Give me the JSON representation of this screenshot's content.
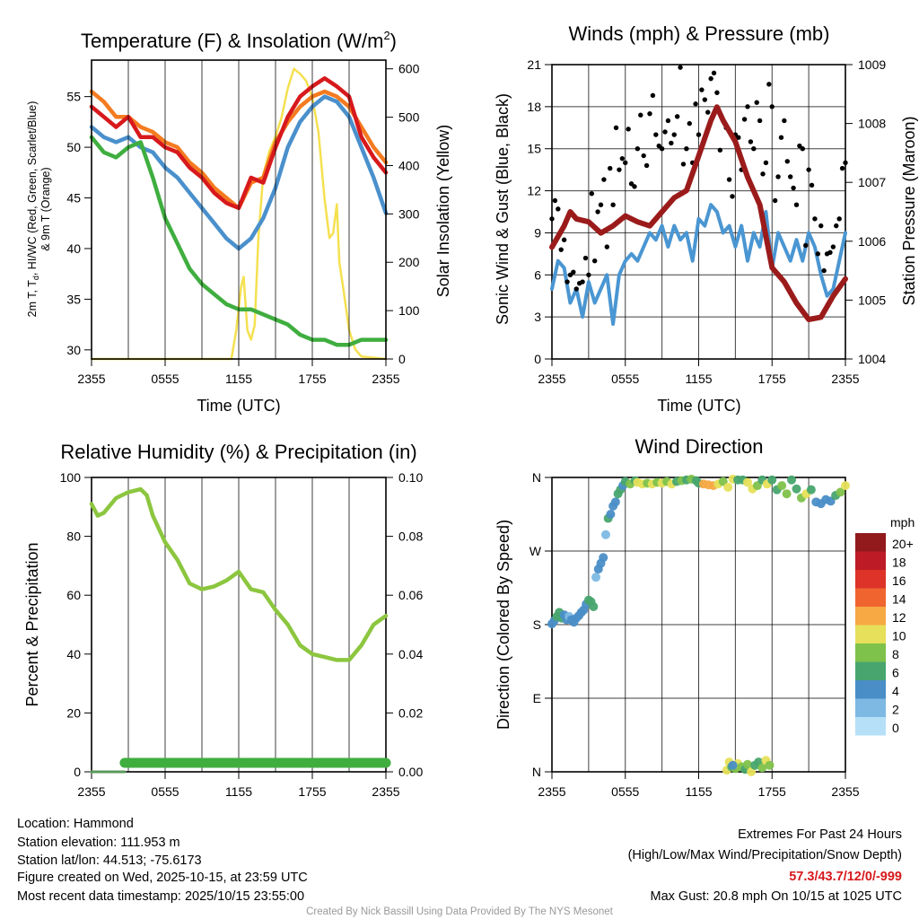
{
  "chart_data": [
    {
      "type": "line",
      "title": "Temperature (F) & Insolation (W/m",
      "title_sup": "2",
      "title_end": ")",
      "xlabel": "Time (UTC)",
      "ylabel_parts": [
        "2m T, T",
        "d",
        ", HI/WC (Red, Green, Scarlet/Blue)"
      ],
      "ylabel_line2": "& 9m T (Orange)",
      "y2label": "Solar Insolation (Yellow)",
      "x_ticks": [
        "2355",
        "0555",
        "1155",
        "1755",
        "2355"
      ],
      "y_ticks": [
        "30",
        "35",
        "40",
        "45",
        "50",
        "55"
      ],
      "y2_ticks": [
        "0",
        "100",
        "200",
        "300",
        "400",
        "500",
        "600"
      ],
      "ylim": [
        29.1,
        58.6
      ],
      "y2lim": [
        0,
        618
      ],
      "hours": [
        0,
        1,
        2,
        3,
        4,
        5,
        6,
        7,
        8,
        9,
        10,
        11,
        12,
        13,
        14,
        15,
        16,
        17,
        18,
        19,
        20,
        21,
        22,
        23,
        24
      ],
      "series": [
        {
          "name": "9m T",
          "color": "#f47b20",
          "values": [
            55.5,
            54.5,
            53,
            53,
            52,
            51.5,
            50.5,
            50,
            48.5,
            47.5,
            46,
            45,
            44,
            46.5,
            47,
            50.5,
            52.5,
            54,
            55,
            55.5,
            55,
            54,
            52,
            50,
            48.5
          ]
        },
        {
          "name": "2m T",
          "color": "#d7191c",
          "values": [
            54,
            53,
            52,
            53,
            51,
            51,
            50,
            49.5,
            48,
            47,
            45.5,
            44.5,
            44,
            47,
            46.5,
            50,
            53,
            55,
            56,
            56.8,
            56,
            55,
            51,
            49,
            47.5
          ]
        },
        {
          "name": "HI/WC",
          "color": "#4a90cc",
          "values": [
            52,
            51,
            50.5,
            51,
            50,
            49.5,
            48,
            47,
            45.5,
            44,
            42.5,
            41,
            40,
            41,
            43,
            46,
            50,
            52.5,
            54,
            55,
            54.5,
            53,
            50,
            47,
            43.5
          ]
        },
        {
          "name": "Td",
          "color": "#3fae3f",
          "values": [
            51,
            49.5,
            49,
            50,
            50.5,
            47,
            43,
            40.5,
            38,
            36.5,
            35.5,
            34.5,
            34,
            34,
            33.5,
            33,
            32.5,
            31.5,
            31,
            31,
            30.5,
            30.5,
            31,
            31,
            31
          ]
        }
      ],
      "insolation": {
        "name": "Solar Insolation",
        "color": "#f5e050",
        "hours": [
          0,
          11.4,
          11.8,
          12.2,
          12.4,
          12.7,
          13.0,
          13.3,
          13.6,
          14,
          14.5,
          15,
          15.5,
          16,
          16.5,
          17,
          17.5,
          18,
          18.5,
          19,
          19.4,
          19.7,
          20,
          20.2,
          20.5,
          21,
          21.5,
          22,
          24
        ],
        "values": [
          0,
          0,
          60,
          150,
          170,
          60,
          40,
          70,
          250,
          380,
          430,
          460,
          500,
          560,
          600,
          590,
          575,
          540,
          470,
          330,
          250,
          260,
          320,
          200,
          150,
          60,
          20,
          5,
          0
        ]
      }
    },
    {
      "type": "line",
      "title": "Winds (mph) & Pressure (mb)",
      "xlabel": "Time (UTC)",
      "ylabel": "Sonic Wind & Gust (Blue, Black)",
      "y2label": "Station Pressure (Maroon)",
      "x_ticks": [
        "2355",
        "0555",
        "1155",
        "1755",
        "2355"
      ],
      "y_ticks": [
        "0",
        "3",
        "6",
        "9",
        "12",
        "15",
        "18",
        "21"
      ],
      "y2_ticks": [
        "1004",
        "1005",
        "1006",
        "1007",
        "1008",
        "1009"
      ],
      "ylim": [
        0,
        21
      ],
      "y2lim": [
        1004,
        1009
      ],
      "wind": {
        "name": "Sonic Wind",
        "color": "#4a96d2",
        "hours": [
          0,
          0.5,
          1,
          1.5,
          2,
          2.5,
          3,
          3.5,
          4,
          4.5,
          5,
          5.5,
          6,
          6.5,
          7,
          7.5,
          8,
          8.5,
          9,
          9.5,
          10,
          10.5,
          11,
          11.5,
          12,
          12.5,
          13,
          13.5,
          14,
          14.5,
          15,
          15.5,
          16,
          16.5,
          17,
          17.5,
          18,
          18.5,
          19,
          19.5,
          20,
          20.5,
          21,
          21.5,
          22,
          22.5,
          23,
          23.5,
          24
        ],
        "values": [
          5,
          7,
          6.5,
          4,
          5,
          3,
          5.5,
          4,
          5,
          6,
          2.5,
          6,
          7,
          7.5,
          7,
          8,
          9,
          8.5,
          9.5,
          8,
          9.5,
          8.5,
          9,
          7,
          10,
          9.5,
          11,
          10.5,
          9,
          9.5,
          8,
          9.5,
          7,
          9,
          8,
          10.5,
          6.5,
          9,
          8,
          7,
          8.5,
          7,
          9,
          8,
          6,
          4.5,
          5,
          7,
          9
        ]
      },
      "pressure": {
        "name": "Station Pressure",
        "color": "#9b1b1b",
        "hours": [
          0,
          1,
          1.5,
          2,
          3,
          4,
          5,
          6,
          7,
          8,
          9,
          10,
          11,
          12,
          13,
          13.5,
          14,
          15,
          16,
          17,
          18,
          19,
          20,
          21,
          22,
          23,
          24
        ],
        "values": [
          1005.9,
          1006.26,
          1006.5,
          1006.38,
          1006.33,
          1006.14,
          1006.26,
          1006.43,
          1006.33,
          1006.26,
          1006.5,
          1006.74,
          1006.86,
          1007.45,
          1008.05,
          1008.28,
          1008.05,
          1007.69,
          1007.09,
          1006.62,
          1005.55,
          1005.31,
          1004.95,
          1004.67,
          1004.71,
          1005.07,
          1005.36
        ]
      },
      "gust": {
        "name": "Gust",
        "color": "#000000",
        "hours": [
          0,
          0.5,
          1,
          1.5,
          2,
          2.5,
          3,
          3.5,
          4,
          4.5,
          5,
          5.5,
          6,
          6.5,
          7,
          7.5,
          8,
          8.5,
          9,
          9.5,
          10,
          10.5,
          11,
          11.5,
          12,
          12.5,
          13,
          13.5,
          14,
          14.5,
          15,
          15.5,
          16,
          16.5,
          17,
          17.5,
          18,
          18.5,
          19,
          19.5,
          20,
          20.5,
          21,
          21.5,
          22,
          22.5,
          23,
          23.5,
          24,
          0.25,
          0.75,
          1.25,
          1.75,
          2.25,
          2.75,
          3.25,
          3.75,
          4.25,
          4.75,
          5.25,
          5.75,
          6.25,
          6.75,
          7.25,
          7.75,
          8.25,
          8.75,
          9.25,
          9.75,
          10.25,
          10.75,
          11.25,
          11.75,
          12.25,
          12.75,
          13.25,
          13.75,
          14.25,
          14.75,
          15.25,
          15.75,
          16.25,
          16.75,
          17.25,
          17.75,
          18.25,
          18.75,
          19.25,
          19.75,
          20.25,
          20.75,
          21.25,
          21.75,
          22.25,
          22.75,
          23.25,
          23.75
        ],
        "values": [
          10,
          10.7,
          8.5,
          6,
          5,
          5.5,
          6,
          7,
          11,
          8,
          11,
          13.5,
          14,
          12.5,
          15,
          14.5,
          17.5,
          16,
          15,
          17,
          16,
          20.8,
          15,
          14,
          16,
          18.5,
          20,
          19,
          17,
          12.8,
          16,
          13.5,
          18,
          15,
          17,
          14,
          18,
          13,
          17,
          13,
          11,
          15,
          13.5,
          10,
          9.5,
          7.5,
          8,
          10,
          14,
          11.3,
          7.8,
          5.5,
          6.2,
          5.4,
          7.2,
          11.8,
          10.5,
          12.8,
          13.6,
          16.5,
          14.3,
          16.4,
          12.3,
          17.4,
          13.8,
          18.8,
          15.2,
          16.2,
          15.4,
          17.3,
          13.9,
          16.8,
          18.2,
          19.2,
          17.6,
          20.4,
          14.9,
          16.5,
          11.6,
          15.8,
          17.1,
          15.5,
          18.3,
          13.2,
          19.6,
          11.3,
          15.8,
          14.1,
          12.2,
          15.2,
          8.1,
          12.4,
          7.5,
          6.3,
          7.6,
          9.5,
          13.6
        ]
      }
    },
    {
      "type": "line",
      "title": "Relative Humidity (%) & Precipitation (in)",
      "ylabel": "Percent & Precipitation",
      "x_ticks": [
        "2355",
        "0555",
        "1155",
        "1755",
        "2355"
      ],
      "y_ticks": [
        "0",
        "20",
        "40",
        "60",
        "80",
        "100"
      ],
      "y2_ticks": [
        "0.00",
        "0.02",
        "0.04",
        "0.06",
        "0.08",
        "0.10"
      ],
      "ylim": [
        0,
        100
      ],
      "y2lim": [
        0,
        0.1
      ],
      "rh": {
        "name": "Relative Humidity",
        "color": "#8cc63f",
        "hours": [
          0,
          0.5,
          1,
          2,
          3,
          4,
          4.5,
          5,
          6,
          7,
          8,
          9,
          10,
          11,
          12,
          13,
          14,
          15,
          16,
          17,
          18,
          19,
          20,
          21,
          22,
          23,
          24
        ],
        "values": [
          91,
          87,
          88,
          93,
          95,
          96,
          94,
          87,
          78,
          72,
          64,
          62,
          63,
          65,
          68,
          62,
          61,
          55,
          50,
          43,
          40,
          39,
          38,
          38,
          43,
          50,
          53
        ]
      },
      "precip": {
        "name": "Precipitation",
        "color": "#3fae3f",
        "hours": [
          0,
          2.7,
          24
        ],
        "values": [
          0,
          0,
          0
        ]
      }
    },
    {
      "type": "scatter",
      "title": "Wind Direction",
      "ylabel": "Direction (Colored By Speed)",
      "x_ticks": [
        "2355",
        "0555",
        "1155",
        "1755",
        "2355"
      ],
      "y_ticks": [
        "N",
        "E",
        "S",
        "W",
        "N"
      ],
      "ylim": [
        0,
        360
      ],
      "colorbar": {
        "title": "mph",
        "labels": [
          "20+",
          "18",
          "16",
          "14",
          "12",
          "10",
          "8",
          "6",
          "4",
          "2",
          "0"
        ],
        "colors": [
          "#921a1d",
          "#bd1c26",
          "#dd3328",
          "#f06430",
          "#f7a944",
          "#e7e05a",
          "#7fc24b",
          "#48a56e",
          "#4a8ec7",
          "#7db9e3",
          "#b5e0f7"
        ]
      },
      "points": [
        [
          0,
          181,
          4
        ],
        [
          0.2,
          185,
          5
        ],
        [
          0.4,
          190,
          6
        ],
        [
          0.6,
          195,
          7
        ],
        [
          0.8,
          188,
          6
        ],
        [
          1,
          192,
          5
        ],
        [
          1.2,
          186,
          4
        ],
        [
          1.4,
          190,
          3
        ],
        [
          1.6,
          186,
          4
        ],
        [
          1.8,
          183,
          5
        ],
        [
          2,
          188,
          4
        ],
        [
          2.2,
          191,
          5
        ],
        [
          2.4,
          195,
          4
        ],
        [
          2.6,
          198,
          5
        ],
        [
          2.8,
          205,
          4
        ],
        [
          3,
          210,
          6
        ],
        [
          3.2,
          208,
          7
        ],
        [
          3.4,
          202,
          6
        ],
        [
          3.6,
          238,
          3
        ],
        [
          3.8,
          248,
          4
        ],
        [
          4,
          255,
          4
        ],
        [
          4.2,
          262,
          4
        ],
        [
          4.4,
          290,
          3
        ],
        [
          4.6,
          310,
          6
        ],
        [
          4.8,
          315,
          4
        ],
        [
          5,
          325,
          5
        ],
        [
          5.2,
          330,
          4
        ],
        [
          5.4,
          340,
          7
        ],
        [
          5.6,
          345,
          6
        ],
        [
          5.8,
          350,
          5
        ],
        [
          6,
          355,
          6
        ],
        [
          6.4,
          352,
          8
        ],
        [
          6.8,
          356,
          7
        ],
        [
          7,
          354,
          10
        ],
        [
          7.4,
          352,
          10
        ],
        [
          7.8,
          353,
          9
        ],
        [
          8.2,
          352,
          10
        ],
        [
          8.6,
          354,
          9
        ],
        [
          9,
          353,
          10
        ],
        [
          9.4,
          355,
          8
        ],
        [
          9.8,
          352,
          10
        ],
        [
          10.2,
          355,
          7
        ],
        [
          10.6,
          356,
          8
        ],
        [
          11,
          357,
          6
        ],
        [
          11.4,
          358,
          9
        ],
        [
          11.8,
          356,
          7
        ],
        [
          12,
          353,
          6
        ],
        [
          12.4,
          352,
          12
        ],
        [
          12.8,
          351,
          12
        ],
        [
          13.2,
          350,
          12
        ],
        [
          13.6,
          352,
          10
        ],
        [
          14,
          355,
          8
        ],
        [
          14.4,
          348,
          10
        ],
        [
          14.8,
          358,
          11
        ],
        [
          15.2,
          357,
          7
        ],
        [
          15.6,
          357,
          6
        ],
        [
          16,
          354,
          10
        ],
        [
          16.4,
          346,
          10
        ],
        [
          16.8,
          350,
          9
        ],
        [
          17.2,
          357,
          6
        ],
        [
          17.6,
          352,
          10
        ],
        [
          18,
          357,
          7
        ],
        [
          18.4,
          345,
          7
        ],
        [
          18.8,
          350,
          8
        ],
        [
          19.2,
          340,
          8
        ],
        [
          19.6,
          357,
          6
        ],
        [
          20,
          346,
          7
        ],
        [
          20.4,
          335,
          8
        ],
        [
          20.8,
          340,
          10
        ],
        [
          21.2,
          345,
          6
        ],
        [
          21.6,
          330,
          4
        ],
        [
          22,
          328,
          4
        ],
        [
          22.4,
          333,
          4
        ],
        [
          22.8,
          331,
          4
        ],
        [
          23.2,
          338,
          7
        ],
        [
          23.6,
          342,
          9
        ],
        [
          24,
          350,
          10
        ],
        [
          14.3,
          2,
          10
        ],
        [
          14.5,
          12,
          10
        ],
        [
          14.7,
          6,
          6
        ],
        [
          15,
          4,
          9
        ],
        [
          15.2,
          10,
          10
        ],
        [
          15.5,
          6,
          8
        ],
        [
          15.8,
          3,
          6
        ],
        [
          16,
          9,
          8
        ],
        [
          16.3,
          0,
          10
        ],
        [
          16.6,
          8,
          7
        ],
        [
          16.9,
          12,
          6
        ],
        [
          17.2,
          5,
          9
        ],
        [
          17.5,
          14,
          10
        ],
        [
          17.8,
          8,
          8
        ],
        [
          14.8,
          8,
          4
        ]
      ]
    }
  ],
  "info": {
    "location": "Location: Hammond",
    "elevation": "Station elevation: 111.953 m",
    "latlon": "Station lat/lon: 44.513; -75.6173",
    "created": "Figure created on Wed, 2025-10-15, at 23:59 UTC",
    "recent": "Most recent data timestamp: 2025/10/15 23:55:00"
  },
  "extremes": {
    "title": "Extremes For Past 24 Hours",
    "subtitle": "(High/Low/Max Wind/Precipitation/Snow Depth)",
    "values": "57.3/43.7/12/0/-999",
    "max_gust": "Max Gust: 20.8 mph On 10/15 at 1025 UTC",
    "accent": "#d7191c"
  },
  "credit": "Created By Nick Bassill Using Data Provided By The NYS Mesonet"
}
